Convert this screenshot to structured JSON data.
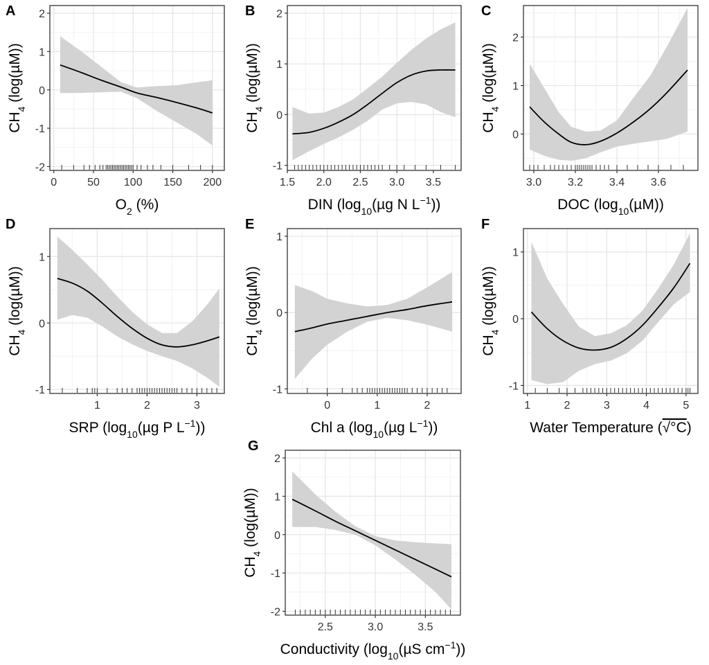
{
  "chart_data": [
    {
      "panel": "A",
      "type": "line",
      "title": "",
      "xlabel": {
        "pre": "O",
        "sub": "2",
        "post": " (%)"
      },
      "ylabel": {
        "pre": "CH",
        "sub": "4",
        "post": " (log(µM))"
      },
      "xlim": [
        -5,
        215
      ],
      "ylim": [
        -2.1,
        2.2
      ],
      "xticks": [
        0,
        50,
        100,
        150,
        200
      ],
      "xtick_labels": [
        "0",
        "50",
        "100",
        "150",
        "200"
      ],
      "yticks": [
        -2,
        -1,
        0,
        1,
        2
      ],
      "ytick_labels": [
        "-2",
        "-1",
        "0",
        "1",
        "2"
      ],
      "x": [
        8,
        35,
        60,
        85,
        105,
        130,
        155,
        180,
        200
      ],
      "y": [
        0.65,
        0.45,
        0.25,
        0.07,
        -0.08,
        -0.2,
        -0.33,
        -0.47,
        -0.6
      ],
      "lower": [
        -0.08,
        -0.08,
        -0.06,
        -0.05,
        -0.22,
        -0.55,
        -0.85,
        -1.15,
        -1.45
      ],
      "upper": [
        1.4,
        1.0,
        0.6,
        0.2,
        0.06,
        0.1,
        0.12,
        0.2,
        0.25
      ],
      "rug": [
        10,
        25,
        38,
        45,
        52,
        58,
        62,
        66,
        68,
        70,
        72,
        74,
        76,
        78,
        80,
        82,
        84,
        86,
        88,
        90,
        92,
        94,
        96,
        98,
        100,
        105,
        110,
        118,
        125,
        135,
        150,
        170,
        185,
        200
      ]
    },
    {
      "panel": "B",
      "type": "line",
      "title": "",
      "xlabel": {
        "pre": "DIN (log",
        "sub": "10",
        "post": "(µg N L",
        "sup": "−1",
        "end": "))"
      },
      "ylabel": {
        "pre": "CH",
        "sub": "4",
        "post": " (log(µM))"
      },
      "xlim": [
        1.5,
        3.88
      ],
      "ylim": [
        -1.1,
        2.15
      ],
      "xticks": [
        1.5,
        2.0,
        2.5,
        3.0,
        3.5
      ],
      "xtick_labels": [
        "1.5",
        "2.0",
        "2.5",
        "3.0",
        "3.5"
      ],
      "yticks": [
        -1,
        0,
        1,
        2
      ],
      "ytick_labels": [
        "-1",
        "0",
        "1",
        "2"
      ],
      "x": [
        1.57,
        1.8,
        2.0,
        2.2,
        2.4,
        2.6,
        2.8,
        3.0,
        3.2,
        3.4,
        3.6,
        3.8
      ],
      "y": [
        -0.38,
        -0.35,
        -0.27,
        -0.15,
        0.0,
        0.2,
        0.42,
        0.63,
        0.78,
        0.86,
        0.88,
        0.88
      ],
      "lower": [
        -0.9,
        -0.72,
        -0.58,
        -0.45,
        -0.3,
        -0.12,
        0.1,
        0.22,
        0.25,
        0.2,
        0.05,
        -0.05
      ],
      "upper": [
        0.15,
        0.02,
        0.04,
        0.15,
        0.3,
        0.52,
        0.75,
        1.02,
        1.28,
        1.5,
        1.68,
        1.82
      ],
      "rug": [
        1.6,
        1.65,
        1.7,
        1.75,
        1.8,
        1.85,
        1.9,
        1.95,
        2.0,
        2.05,
        2.1,
        2.15,
        2.2,
        2.25,
        2.3,
        2.35,
        2.4,
        2.45,
        2.5,
        2.55,
        2.6,
        2.65,
        2.7,
        2.75,
        2.8,
        2.9,
        3.0,
        3.1,
        3.25,
        3.4,
        3.6,
        3.8
      ]
    },
    {
      "panel": "C",
      "type": "line",
      "title": "",
      "xlabel": {
        "pre": "DOC (log",
        "sub": "10",
        "post": "(µM))"
      },
      "ylabel": {
        "pre": "CH",
        "sub": "4",
        "post": " (log(µM))"
      },
      "xlim": [
        2.95,
        3.79
      ],
      "ylim": [
        -0.75,
        2.65
      ],
      "xticks": [
        3.0,
        3.2,
        3.4,
        3.6
      ],
      "xtick_labels": [
        "3.0",
        "3.2",
        "3.4",
        "3.6"
      ],
      "yticks": [
        0,
        1,
        2
      ],
      "ytick_labels": [
        "0",
        "1",
        "2"
      ],
      "x": [
        2.98,
        3.05,
        3.12,
        3.18,
        3.25,
        3.32,
        3.4,
        3.48,
        3.56,
        3.64,
        3.74
      ],
      "y": [
        0.56,
        0.25,
        0.0,
        -0.17,
        -0.22,
        -0.15,
        0.02,
        0.25,
        0.52,
        0.85,
        1.32
      ],
      "lower": [
        -0.32,
        -0.45,
        -0.53,
        -0.55,
        -0.5,
        -0.38,
        -0.26,
        -0.2,
        -0.15,
        -0.1,
        0.05
      ],
      "upper": [
        1.45,
        0.95,
        0.45,
        0.15,
        0.05,
        0.07,
        0.28,
        0.75,
        1.2,
        1.8,
        2.6
      ],
      "rug": [
        2.98,
        3.0,
        3.02,
        3.05,
        3.08,
        3.1,
        3.12,
        3.14,
        3.16,
        3.18,
        3.2,
        3.21,
        3.22,
        3.23,
        3.24,
        3.25,
        3.26,
        3.27,
        3.28,
        3.3,
        3.32,
        3.34,
        3.36,
        3.4,
        3.45,
        3.5,
        3.55,
        3.6,
        3.66,
        3.72
      ]
    },
    {
      "panel": "D",
      "type": "line",
      "title": "",
      "xlabel": {
        "pre": "SRP (log",
        "sub": "10",
        "post": "(µg P L",
        "sup": "−1",
        "end": "))"
      },
      "ylabel": {
        "pre": "CH",
        "sub": "4",
        "post": " (log(µM))"
      },
      "xlim": [
        0.05,
        3.55
      ],
      "ylim": [
        -1.06,
        1.42
      ],
      "xticks": [
        1,
        2,
        3
      ],
      "xtick_labels": [
        "1",
        "2",
        "3"
      ],
      "yticks": [
        -1,
        0,
        1
      ],
      "ytick_labels": [
        "-1",
        "0",
        "1"
      ],
      "x": [
        0.2,
        0.5,
        0.8,
        1.1,
        1.4,
        1.7,
        2.0,
        2.3,
        2.6,
        2.9,
        3.2,
        3.45
      ],
      "y": [
        0.67,
        0.6,
        0.48,
        0.3,
        0.1,
        -0.08,
        -0.23,
        -0.33,
        -0.36,
        -0.33,
        -0.27,
        -0.21
      ],
      "lower": [
        0.05,
        0.12,
        0.08,
        -0.05,
        -0.2,
        -0.32,
        -0.42,
        -0.5,
        -0.57,
        -0.68,
        -0.82,
        -0.96
      ],
      "upper": [
        1.3,
        1.1,
        0.88,
        0.65,
        0.4,
        0.17,
        -0.02,
        -0.15,
        -0.15,
        0.02,
        0.27,
        0.52
      ],
      "rug": [
        0.3,
        0.6,
        0.8,
        0.9,
        0.95,
        1.0,
        1.2,
        1.4,
        1.5,
        1.6,
        1.7,
        1.8,
        1.85,
        1.9,
        1.95,
        2.0,
        2.05,
        2.1,
        2.15,
        2.2,
        2.25,
        2.3,
        2.35,
        2.4,
        2.45,
        2.5,
        2.55,
        2.6,
        2.7,
        2.8,
        2.9,
        3.0,
        3.1,
        3.2,
        3.3,
        3.4
      ]
    },
    {
      "panel": "E",
      "type": "line",
      "title": "",
      "xlabel": {
        "pre": "Chl a (log",
        "sub": "10",
        "post": "(µg L",
        "sup": "−1",
        "end": "))"
      },
      "ylabel": {
        "pre": "CH",
        "sub": "4",
        "post": " (log(µM))"
      },
      "xlim": [
        -0.8,
        2.68
      ],
      "ylim": [
        -1.06,
        1.1
      ],
      "xticks": [
        0,
        1,
        2
      ],
      "xtick_labels": [
        "0",
        "1",
        "2"
      ],
      "yticks": [
        -1,
        0,
        1
      ],
      "ytick_labels": [
        "-1",
        "0",
        "1"
      ],
      "x": [
        -0.65,
        -0.3,
        0.0,
        0.4,
        0.8,
        1.2,
        1.6,
        2.0,
        2.5
      ],
      "y": [
        -0.25,
        -0.2,
        -0.15,
        -0.1,
        -0.05,
        0.0,
        0.04,
        0.09,
        0.14
      ],
      "lower": [
        -0.87,
        -0.6,
        -0.42,
        -0.25,
        -0.12,
        -0.07,
        -0.1,
        -0.16,
        -0.25
      ],
      "upper": [
        0.36,
        0.28,
        0.18,
        0.12,
        0.08,
        0.1,
        0.18,
        0.33,
        0.53
      ],
      "rug": [
        -0.4,
        0.0,
        0.3,
        0.5,
        0.6,
        0.7,
        0.8,
        0.85,
        0.9,
        0.95,
        1.0,
        1.05,
        1.1,
        1.15,
        1.2,
        1.25,
        1.3,
        1.35,
        1.4,
        1.45,
        1.5,
        1.55,
        1.6,
        1.7,
        1.8,
        1.9,
        2.0,
        2.1,
        2.2,
        2.3,
        2.4
      ]
    },
    {
      "panel": "F",
      "type": "line",
      "title": "",
      "xlabel": {
        "pre": "Water Temperature (",
        "radical": "√°C",
        "end": ")"
      },
      "ylabel": {
        "pre": "CH",
        "sub": "4",
        "post": " (log(µM))"
      },
      "xlim": [
        0.9,
        5.3
      ],
      "ylim": [
        -1.12,
        1.35
      ],
      "xticks": [
        1,
        2,
        3,
        4,
        5
      ],
      "xtick_labels": [
        "1",
        "2",
        "3",
        "4",
        "5"
      ],
      "yticks": [
        -1,
        0,
        1
      ],
      "ytick_labels": [
        "-1",
        "0",
        "1"
      ],
      "x": [
        1.1,
        1.5,
        1.9,
        2.3,
        2.7,
        3.1,
        3.5,
        3.9,
        4.3,
        4.7,
        5.1
      ],
      "y": [
        0.1,
        -0.15,
        -0.33,
        -0.44,
        -0.47,
        -0.43,
        -0.3,
        -0.1,
        0.17,
        0.47,
        0.83
      ],
      "lower": [
        -0.92,
        -0.98,
        -0.95,
        -0.78,
        -0.68,
        -0.63,
        -0.52,
        -0.33,
        -0.05,
        0.22,
        0.4
      ],
      "upper": [
        1.15,
        0.6,
        0.22,
        -0.12,
        -0.26,
        -0.22,
        -0.1,
        0.12,
        0.45,
        0.82,
        1.28
      ],
      "rug": [
        1.2,
        1.5,
        1.8,
        2.0,
        2.2,
        2.4,
        2.5,
        2.6,
        2.7,
        2.8,
        2.9,
        3.0,
        3.1,
        3.2,
        3.3,
        3.4,
        3.5,
        3.6,
        3.7,
        3.8,
        3.9,
        4.0,
        4.1,
        4.2,
        4.3,
        4.4,
        4.5,
        4.6,
        4.7,
        4.8,
        4.9,
        5.0,
        5.05,
        5.1
      ]
    },
    {
      "panel": "G",
      "type": "line",
      "title": "",
      "xlabel": {
        "pre": "Conductivity (log",
        "sub": "10",
        "post": "(µS cm",
        "sup": "−1",
        "end": "))"
      },
      "ylabel": {
        "pre": "CH",
        "sub": "4",
        "post": " (log(µM))"
      },
      "xlim": [
        2.1,
        3.85
      ],
      "ylim": [
        -2.1,
        2.2
      ],
      "xticks": [
        2.5,
        3.0,
        3.5
      ],
      "xtick_labels": [
        "2.5",
        "3.0",
        "3.5"
      ],
      "yticks": [
        -2,
        -1,
        0,
        1,
        2
      ],
      "ytick_labels": [
        "-2",
        "-1",
        "0",
        "1",
        "2"
      ],
      "x": [
        2.17,
        2.4,
        2.6,
        2.8,
        3.0,
        3.2,
        3.4,
        3.6,
        3.76
      ],
      "y": [
        0.92,
        0.62,
        0.35,
        0.1,
        -0.15,
        -0.4,
        -0.65,
        -0.9,
        -1.1
      ],
      "lower": [
        0.2,
        0.2,
        0.12,
        0.0,
        -0.28,
        -0.65,
        -1.05,
        -1.5,
        -1.95
      ],
      "upper": [
        1.65,
        1.05,
        0.6,
        0.22,
        -0.04,
        -0.15,
        -0.2,
        -0.23,
        -0.25
      ],
      "rug": [
        2.2,
        2.25,
        2.3,
        2.35,
        2.4,
        2.45,
        2.5,
        2.55,
        2.6,
        2.65,
        2.7,
        2.75,
        2.8,
        2.85,
        2.9,
        2.95,
        3.0,
        3.05,
        3.1,
        3.15,
        3.2,
        3.25,
        3.3,
        3.35,
        3.4,
        3.45,
        3.5,
        3.55,
        3.6,
        3.65,
        3.7,
        3.75
      ]
    }
  ],
  "colors": {
    "band": "#d3d3d3",
    "line": "#000000",
    "grid_major": "#e6e6e6",
    "grid_minor": "#f2f2f2",
    "frame": "#333333",
    "rug": "#333333"
  }
}
